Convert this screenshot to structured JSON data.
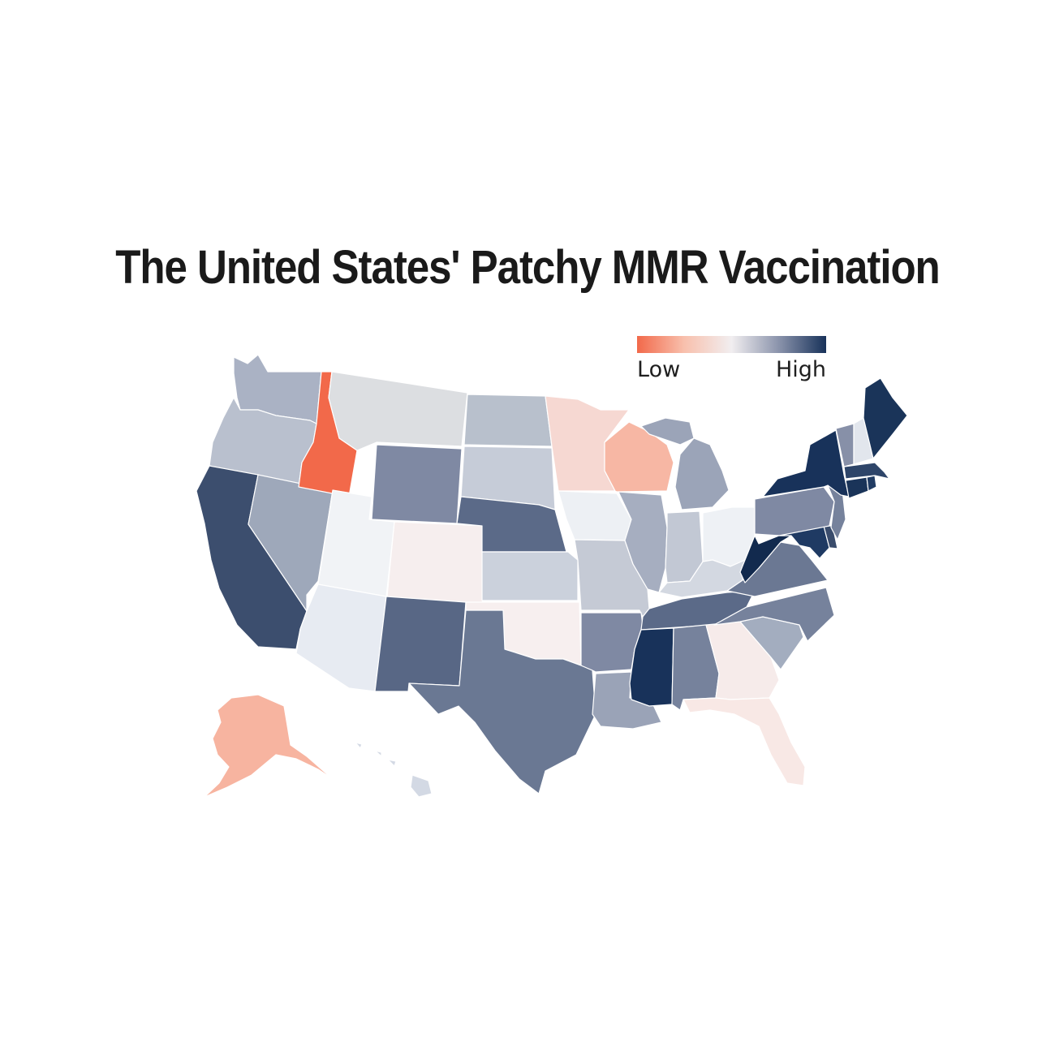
{
  "title": "The United States' Patchy MMR Vaccination",
  "legend": {
    "low_label": "Low",
    "high_label": "High",
    "colors": [
      "#f2694a",
      "#f8c0ad",
      "#f1eef0",
      "#8a93ab",
      "#18325a"
    ]
  },
  "states": [
    {
      "code": "WA",
      "level": 0.66,
      "color": "#aab2c4"
    },
    {
      "code": "OR",
      "level": 0.64,
      "color": "#b9c0ce"
    },
    {
      "code": "CA",
      "level": 0.9,
      "color": "#3c4e6e"
    },
    {
      "code": "NV",
      "level": 0.72,
      "color": "#9ea8ba"
    },
    {
      "code": "ID",
      "level": 0.0,
      "color": "#f2694a"
    },
    {
      "code": "MT",
      "level": 0.5,
      "color": "#dcdee1"
    },
    {
      "code": "WY",
      "level": 0.8,
      "color": "#7f89a3"
    },
    {
      "code": "UT",
      "level": 0.51,
      "color": "#f1f3f6"
    },
    {
      "code": "AZ",
      "level": 0.55,
      "color": "#e7ebf2"
    },
    {
      "code": "CO",
      "level": 0.46,
      "color": "#f6eeee"
    },
    {
      "code": "NM",
      "level": 0.86,
      "color": "#586785"
    },
    {
      "code": "ND",
      "level": 0.64,
      "color": "#b8c0cc"
    },
    {
      "code": "SD",
      "level": 0.6,
      "color": "#c6ccd8"
    },
    {
      "code": "NE",
      "level": 0.86,
      "color": "#5b6a88"
    },
    {
      "code": "KS",
      "level": 0.59,
      "color": "#cbd1dc"
    },
    {
      "code": "OK",
      "level": 0.46,
      "color": "#f7efef"
    },
    {
      "code": "TX",
      "level": 0.84,
      "color": "#6a7893"
    },
    {
      "code": "MN",
      "level": 0.38,
      "color": "#f6d8d2"
    },
    {
      "code": "IA",
      "level": 0.53,
      "color": "#edf0f4"
    },
    {
      "code": "MO",
      "level": 0.6,
      "color": "#c5cad5"
    },
    {
      "code": "AR",
      "level": 0.8,
      "color": "#7f89a3"
    },
    {
      "code": "LA",
      "level": 0.74,
      "color": "#9aa3b7"
    },
    {
      "code": "WI",
      "level": 0.25,
      "color": "#f7b7a4"
    },
    {
      "code": "IL",
      "level": 0.68,
      "color": "#a6aec0"
    },
    {
      "code": "MI",
      "level": 0.72,
      "color": "#9ba4b8"
    },
    {
      "code": "IN",
      "level": 0.62,
      "color": "#c2c8d4"
    },
    {
      "code": "OH",
      "level": 0.52,
      "color": "#eef1f5"
    },
    {
      "code": "KY",
      "level": 0.58,
      "color": "#d3d8e1"
    },
    {
      "code": "TN",
      "level": 0.86,
      "color": "#5b6a88"
    },
    {
      "code": "MS",
      "level": 1.0,
      "color": "#18325a"
    },
    {
      "code": "AL",
      "level": 0.82,
      "color": "#76829c"
    },
    {
      "code": "GA",
      "level": 0.45,
      "color": "#f6ebea"
    },
    {
      "code": "FL",
      "level": 0.44,
      "color": "#f8e8e5"
    },
    {
      "code": "SC",
      "level": 0.7,
      "color": "#a3adbf"
    },
    {
      "code": "NC",
      "level": 0.82,
      "color": "#76829c"
    },
    {
      "code": "VA",
      "level": 0.84,
      "color": "#6b7893"
    },
    {
      "code": "WV",
      "level": 1.0,
      "color": "#122a4e"
    },
    {
      "code": "MD",
      "level": 0.98,
      "color": "#1f3a63"
    },
    {
      "code": "DE",
      "level": 0.94,
      "color": "#3a4c6c"
    },
    {
      "code": "PA",
      "level": 0.8,
      "color": "#7f89a3"
    },
    {
      "code": "NJ",
      "level": 0.82,
      "color": "#76829c"
    },
    {
      "code": "NY",
      "level": 1.0,
      "color": "#18325a"
    },
    {
      "code": "CT",
      "level": 1.0,
      "color": "#1a3459"
    },
    {
      "code": "RI",
      "level": 0.98,
      "color": "#213c63"
    },
    {
      "code": "MA",
      "level": 0.94,
      "color": "#2e4569"
    },
    {
      "code": "VT",
      "level": 0.78,
      "color": "#8790a8"
    },
    {
      "code": "NH",
      "level": 0.56,
      "color": "#e2e6ed"
    },
    {
      "code": "ME",
      "level": 1.0,
      "color": "#1a3459"
    },
    {
      "code": "AK",
      "level": 0.25,
      "color": "#f7b4a0"
    },
    {
      "code": "HI",
      "level": 0.58,
      "color": "#d3d9e4"
    }
  ]
}
